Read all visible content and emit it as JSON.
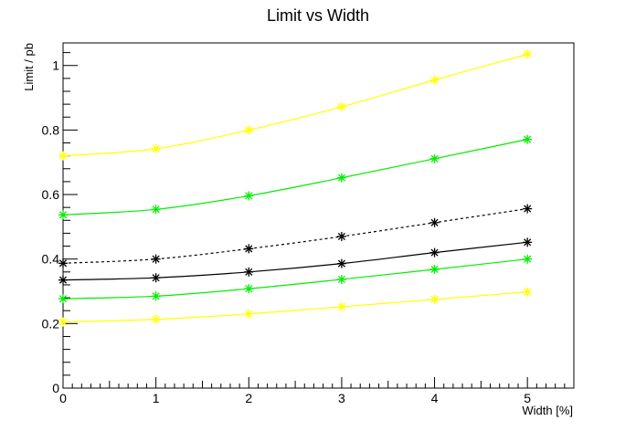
{
  "chart_data": {
    "type": "line",
    "title": "Limit vs Width",
    "xlabel": "Width [%]",
    "ylabel": "Limit / pb",
    "xlim": [
      0,
      5.5
    ],
    "ylim": [
      0,
      1.07
    ],
    "grid": false,
    "x": [
      0,
      1,
      2,
      3,
      4,
      5
    ],
    "x_ticks": [
      "0",
      "1",
      "2",
      "3",
      "4",
      "5"
    ],
    "y_ticks": [
      "0",
      "0.2",
      "0.4",
      "0.6",
      "0.8",
      "1"
    ],
    "y_tick_values": [
      0,
      0.2,
      0.4,
      0.6,
      0.8,
      1.0
    ],
    "series": [
      {
        "values": [
          0.72,
          0.742,
          0.8,
          0.872,
          0.955,
          1.035
        ],
        "color": "#ffff00",
        "style": "solid"
      },
      {
        "values": [
          0.537,
          0.554,
          0.596,
          0.652,
          0.711,
          0.771
        ],
        "color": "#00ee00",
        "style": "solid"
      },
      {
        "values": [
          0.387,
          0.4,
          0.432,
          0.47,
          0.513,
          0.556
        ],
        "color": "#000000",
        "style": "dashed"
      },
      {
        "values": [
          0.335,
          0.342,
          0.36,
          0.386,
          0.42,
          0.452
        ],
        "color": "#000000",
        "style": "solid"
      },
      {
        "values": [
          0.277,
          0.285,
          0.308,
          0.337,
          0.368,
          0.4
        ],
        "color": "#00ee00",
        "style": "solid"
      },
      {
        "values": [
          0.205,
          0.213,
          0.23,
          0.252,
          0.275,
          0.298
        ],
        "color": "#ffff00",
        "style": "solid"
      }
    ]
  }
}
